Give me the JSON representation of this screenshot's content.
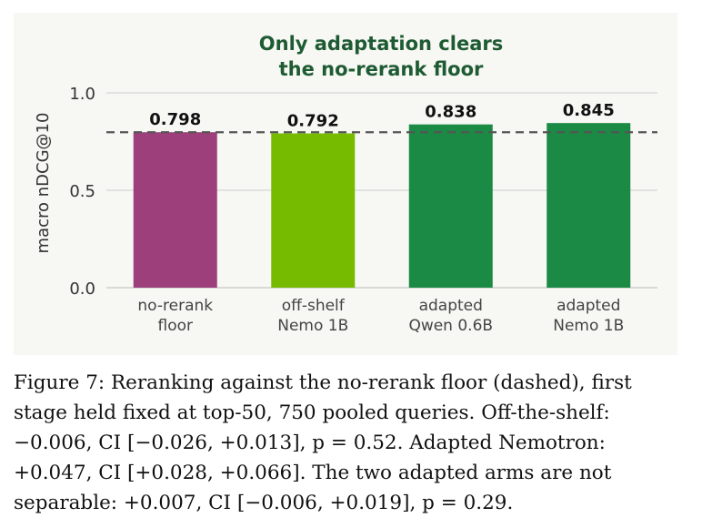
{
  "chart_data": {
    "type": "bar",
    "title_lines": [
      "Only adaptation clears",
      "the no-rerank floor"
    ],
    "ylabel": "macro nDCG@10",
    "xlabel": "",
    "ylim": [
      0,
      1.0
    ],
    "yticks": [
      "0.0",
      "0.5",
      "1.0"
    ],
    "ytick_values": [
      0.0,
      0.5,
      1.0
    ],
    "grid": true,
    "categories": [
      [
        "no-rerank",
        "floor"
      ],
      [
        "off-shelf",
        "Nemo 1B"
      ],
      [
        "adapted",
        "Qwen 0.6B"
      ],
      [
        "adapted",
        "Nemo 1B"
      ]
    ],
    "values": [
      0.798,
      0.792,
      0.838,
      0.845
    ],
    "value_labels": [
      "0.798",
      "0.792",
      "0.838",
      "0.845"
    ],
    "bar_colors": [
      "#9c3f7a",
      "#77bb00",
      "#1b8a45",
      "#1b8a45"
    ],
    "reference_line": {
      "value": 0.798,
      "style": "dashed"
    }
  },
  "caption": {
    "lines": [
      "Figure 7: Reranking against the no-rerank floor (dashed), first",
      "stage held fixed at top-50, 750 pooled queries. Off-the-shelf:",
      "−0.006, CI [−0.026, +0.013], p = 0.52. Adapted Nemotron:",
      "+0.047, CI [+0.028, +0.066]. The two adapted arms are not",
      "separable: +0.007, CI [−0.006, +0.019], p = 0.29."
    ]
  },
  "colors": {
    "panel_bg": "#f7f7f4",
    "title": "#1e5b32",
    "grid": "#dcdcdc",
    "reference_line": "#555555"
  }
}
